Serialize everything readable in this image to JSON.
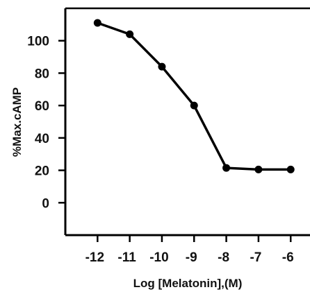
{
  "chart_data": {
    "type": "line",
    "title": "",
    "xlabel": "Log [Melatonin],(M)",
    "ylabel": "%Max.cAMP",
    "x_ticks": [
      "-12",
      "-11",
      "-10",
      "-9",
      "-8",
      "-7",
      "-6"
    ],
    "y_ticks": [
      "0",
      "20",
      "40",
      "60",
      "80",
      "100"
    ],
    "xlim": [
      -13,
      -5.4
    ],
    "ylim": [
      -20,
      120
    ],
    "grid": false,
    "series": [
      {
        "x": [
          -12,
          -11,
          -10,
          -9,
          -8,
          -7,
          -6
        ],
        "y": [
          111,
          104,
          84,
          60,
          21.5,
          20.5,
          20.5
        ],
        "color": "#000000"
      }
    ]
  }
}
